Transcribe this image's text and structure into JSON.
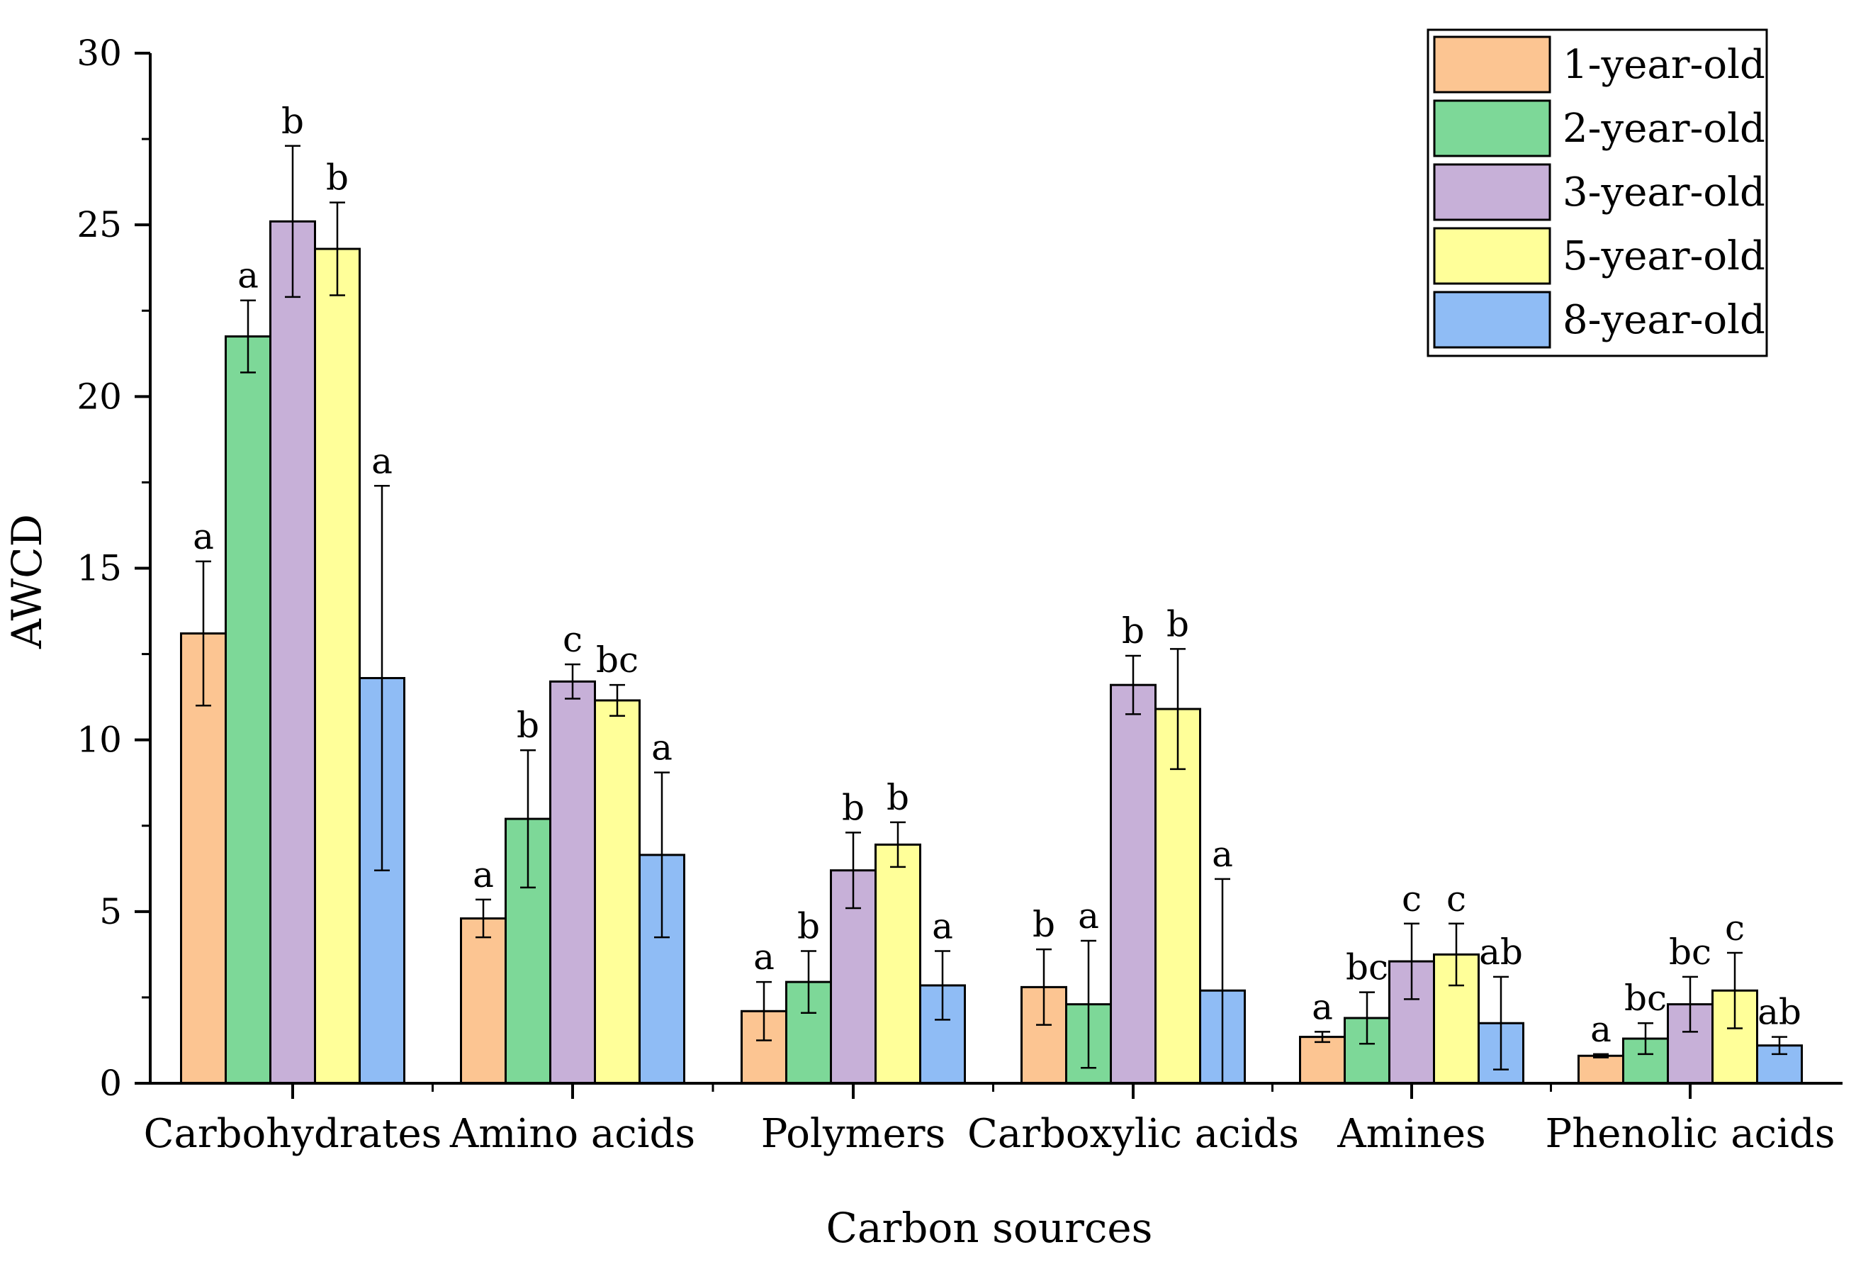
{
  "chart_data": {
    "type": "bar",
    "title": "",
    "xlabel": "Carbon sources",
    "ylabel": "AWCD",
    "ylim": [
      0,
      30
    ],
    "yticks": [
      0,
      5,
      10,
      15,
      20,
      25,
      30
    ],
    "categories": [
      "Carbohydrates",
      "Amino acids",
      "Polymers",
      "Carboxylic acids",
      "Amines",
      "Phenolic acids"
    ],
    "legend_position": "top-right",
    "series": [
      {
        "name": "1-year-old",
        "color": "#FCC592",
        "values": [
          13.1,
          4.8,
          2.1,
          2.8,
          1.35,
          0.8
        ],
        "errors": [
          2.1,
          0.55,
          0.85,
          1.1,
          0.15,
          0.05
        ],
        "letters": [
          "a",
          "a",
          "a",
          "b",
          "a",
          "a"
        ]
      },
      {
        "name": "2-year-old",
        "color": "#7DD898",
        "values": [
          21.75,
          7.7,
          2.95,
          2.3,
          1.9,
          1.3
        ],
        "errors": [
          1.05,
          2.0,
          0.9,
          1.85,
          0.75,
          0.45
        ],
        "letters": [
          "a",
          "b",
          "b",
          "a",
          "bc",
          "bc"
        ]
      },
      {
        "name": "3-year-old",
        "color": "#C7B0D8",
        "values": [
          25.1,
          11.7,
          6.2,
          11.6,
          3.55,
          2.3
        ],
        "errors": [
          2.2,
          0.5,
          1.1,
          0.85,
          1.1,
          0.8
        ],
        "letters": [
          "b",
          "c",
          "b",
          "b",
          "c",
          "bc"
        ]
      },
      {
        "name": "5-year-old",
        "color": "#FFFF99",
        "values": [
          24.3,
          11.15,
          6.95,
          10.9,
          3.75,
          2.7
        ],
        "errors": [
          1.35,
          0.45,
          0.65,
          1.75,
          0.9,
          1.1
        ],
        "letters": [
          "b",
          "bc",
          "b",
          "b",
          "c",
          "c"
        ]
      },
      {
        "name": "8-year-old",
        "color": "#8FBCF5",
        "values": [
          11.8,
          6.65,
          2.85,
          2.7,
          1.75,
          1.1
        ],
        "errors": [
          5.6,
          2.4,
          1.0,
          3.25,
          1.35,
          0.25
        ],
        "letters": [
          "a",
          "a",
          "a",
          "a",
          "ab",
          "ab"
        ]
      }
    ]
  }
}
